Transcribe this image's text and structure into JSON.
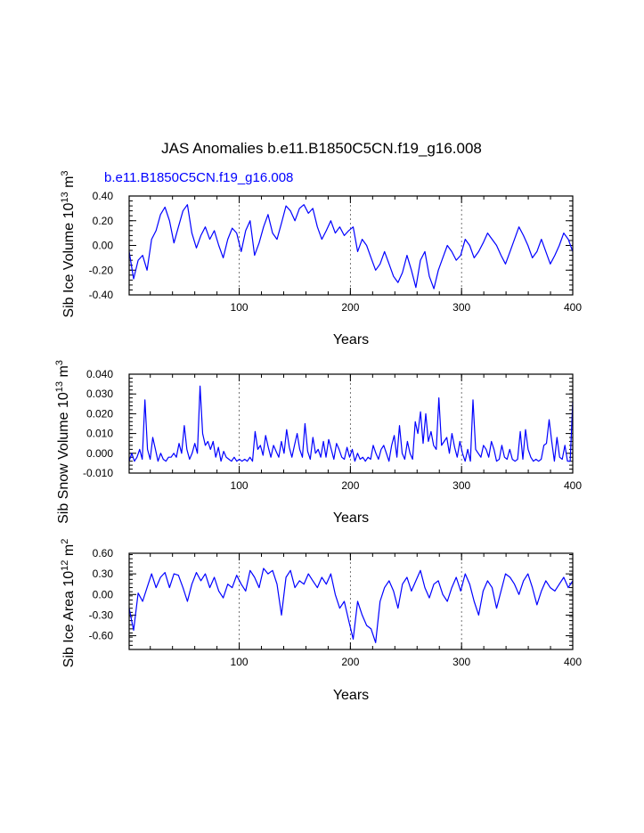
{
  "figure_title": "JAS Anomalies b.e11.B1850C5CN.f19_g16.008",
  "chart_data": [
    {
      "type": "line",
      "subtitle": "b.e11.B1850C5CN.f19_g16.008",
      "xlabel": "Years",
      "ylabel_main": "Sib Ice Volume 10",
      "ylabel_exp": "13",
      "ylabel_unit": " m",
      "ylabel_unit_exp": "3",
      "xlim": [
        1,
        400
      ],
      "ylim": [
        -0.4,
        0.4
      ],
      "xticks": [
        100,
        200,
        300,
        400
      ],
      "xtick_labels": [
        "100",
        "200",
        "300",
        "400"
      ],
      "yticks": [
        -0.4,
        -0.2,
        0.0,
        0.2,
        0.4
      ],
      "ytick_labels": [
        "-0.40",
        "-0.20",
        "0.00",
        "0.20",
        "0.40"
      ],
      "grid_x": [
        100,
        200,
        300
      ],
      "color": "#0000ff",
      "series": [
        {
          "name": "Sib Ice Volume anomaly",
          "values": [
            -0.05,
            -0.27,
            -0.12,
            -0.08,
            -0.2,
            0.05,
            0.12,
            0.25,
            0.31,
            0.2,
            0.02,
            0.15,
            0.28,
            0.33,
            0.1,
            -0.02,
            0.08,
            0.15,
            0.05,
            0.12,
            0.0,
            -0.1,
            0.05,
            0.14,
            0.1,
            -0.05,
            0.12,
            0.2,
            -0.08,
            0.02,
            0.15,
            0.25,
            0.1,
            0.05,
            0.18,
            0.32,
            0.28,
            0.2,
            0.3,
            0.33,
            0.26,
            0.3,
            0.15,
            0.05,
            0.12,
            0.2,
            0.1,
            0.15,
            0.08,
            0.12,
            0.15,
            -0.05,
            0.05,
            0.0,
            -0.1,
            -0.2,
            -0.15,
            -0.05,
            -0.15,
            -0.25,
            -0.3,
            -0.22,
            -0.08,
            -0.2,
            -0.34,
            -0.12,
            -0.05,
            -0.25,
            -0.35,
            -0.2,
            -0.1,
            0.0,
            -0.05,
            -0.12,
            -0.08,
            0.05,
            0.0,
            -0.1,
            -0.05,
            0.02,
            0.1,
            0.05,
            0.0,
            -0.08,
            -0.15,
            -0.05,
            0.05,
            0.15,
            0.08,
            0.0,
            -0.1,
            -0.05,
            0.05,
            -0.05,
            -0.15,
            -0.08,
            0.0,
            0.1,
            0.05,
            -0.05
          ]
        }
      ]
    },
    {
      "type": "line",
      "xlabel": "Years",
      "ylabel_main": "Sib Snow Volume 10",
      "ylabel_exp": "13",
      "ylabel_unit": " m",
      "ylabel_unit_exp": "3",
      "xlim": [
        1,
        400
      ],
      "ylim": [
        -0.01,
        0.04
      ],
      "xticks": [
        100,
        200,
        300,
        400
      ],
      "xtick_labels": [
        "100",
        "200",
        "300",
        "400"
      ],
      "yticks": [
        -0.01,
        0.0,
        0.01,
        0.02,
        0.03,
        0.04
      ],
      "ytick_labels": [
        "-0.010",
        "0.000",
        "0.010",
        "0.020",
        "0.030",
        "0.040"
      ],
      "grid_x": [
        100,
        200,
        300
      ],
      "color": "#0000ff",
      "series": [
        {
          "name": "Sib Snow Volume anomaly",
          "values": [
            -0.004,
            0.0,
            -0.004,
            -0.002,
            0.002,
            -0.003,
            0.027,
            0.002,
            -0.003,
            0.008,
            0.002,
            -0.004,
            0.0,
            -0.003,
            -0.004,
            -0.002,
            -0.002,
            0.0,
            -0.002,
            0.005,
            0.0,
            0.014,
            0.002,
            -0.003,
            0.0,
            0.005,
            0.0,
            0.034,
            0.01,
            0.004,
            0.006,
            0.002,
            0.006,
            -0.002,
            0.003,
            -0.004,
            0.001,
            -0.002,
            -0.003,
            -0.004,
            -0.002,
            -0.004,
            -0.003,
            -0.004,
            -0.003,
            -0.004,
            -0.002,
            -0.004,
            0.011,
            0.002,
            0.004,
            -0.001,
            0.009,
            0.003,
            -0.002,
            0.004,
            0.001,
            -0.002,
            0.006,
            0.0,
            0.012,
            0.003,
            -0.002,
            0.004,
            0.01,
            0.002,
            -0.002,
            0.015,
            0.001,
            -0.003,
            0.008,
            0.0,
            0.002,
            -0.002,
            0.006,
            -0.002,
            0.007,
            0.002,
            -0.003,
            0.005,
            0.002,
            -0.002,
            -0.003,
            0.003,
            -0.002,
            0.002,
            -0.004,
            0.0,
            -0.003,
            -0.002,
            -0.004,
            -0.002,
            -0.003,
            0.004,
            0.0,
            -0.003,
            0.002,
            0.004,
            0.0,
            -0.004,
            0.004,
            0.009,
            -0.002,
            0.014,
            0.0,
            -0.003,
            0.006,
            0.0,
            -0.003,
            0.016,
            0.01,
            0.021,
            0.005,
            0.02,
            0.006,
            0.011,
            0.004,
            0.002,
            0.028,
            0.004,
            0.006,
            0.008,
            0.0,
            0.01,
            0.003,
            -0.002,
            0.006,
            0.0,
            -0.004,
            0.002,
            -0.004,
            0.027,
            0.002,
            0.0,
            -0.002,
            0.004,
            0.002,
            -0.002,
            0.006,
            0.002,
            -0.004,
            -0.003,
            0.004,
            -0.002,
            -0.003,
            0.002,
            -0.003,
            -0.004,
            -0.003,
            0.011,
            -0.003,
            0.012,
            0.002,
            -0.002,
            -0.004,
            -0.003,
            -0.004,
            -0.003,
            0.004,
            0.005,
            0.017,
            0.006,
            -0.004,
            0.008,
            -0.002,
            -0.003,
            0.004,
            -0.004,
            -0.004,
            0.026
          ]
        }
      ]
    },
    {
      "type": "line",
      "xlabel": "Years",
      "ylabel_main": "Sib Ice Area 10",
      "ylabel_exp": "12",
      "ylabel_unit": " m",
      "ylabel_unit_exp": "2",
      "xlim": [
        1,
        400
      ],
      "ylim": [
        -0.8,
        0.6
      ],
      "xticks": [
        100,
        200,
        300,
        400
      ],
      "xtick_labels": [
        "100",
        "200",
        "300",
        "400"
      ],
      "yticks": [
        -0.6,
        -0.3,
        0.0,
        0.3,
        0.6
      ],
      "ytick_labels": [
        "-0.60",
        "-0.30",
        "0.00",
        "0.30",
        "0.60"
      ],
      "grid_x": [
        100,
        200,
        300
      ],
      "color": "#0000ff",
      "series": [
        {
          "name": "Sib Ice Area anomaly",
          "values": [
            -0.2,
            -0.52,
            0.02,
            -0.1,
            0.1,
            0.3,
            0.1,
            0.25,
            0.32,
            0.1,
            0.3,
            0.28,
            0.1,
            -0.1,
            0.15,
            0.32,
            0.2,
            0.3,
            0.1,
            0.25,
            0.05,
            -0.05,
            0.15,
            0.1,
            0.28,
            0.15,
            0.05,
            0.35,
            0.25,
            0.1,
            0.38,
            0.3,
            0.35,
            0.15,
            -0.3,
            0.25,
            0.35,
            0.1,
            0.2,
            0.15,
            0.3,
            0.2,
            0.1,
            0.25,
            0.15,
            0.3,
            0.0,
            -0.2,
            -0.1,
            -0.38,
            -0.65,
            -0.1,
            -0.3,
            -0.45,
            -0.5,
            -0.7,
            -0.1,
            0.1,
            0.2,
            0.05,
            -0.2,
            0.15,
            0.25,
            0.05,
            0.2,
            0.35,
            0.1,
            -0.05,
            0.15,
            0.2,
            0.0,
            -0.1,
            0.1,
            0.25,
            0.05,
            0.3,
            0.15,
            -0.1,
            -0.3,
            0.05,
            0.2,
            0.1,
            -0.2,
            0.05,
            0.3,
            0.25,
            0.15,
            0.0,
            0.2,
            0.3,
            0.1,
            -0.15,
            0.05,
            0.2,
            0.1,
            0.05,
            0.15,
            0.25,
            0.1,
            0.2
          ]
        }
      ]
    }
  ]
}
